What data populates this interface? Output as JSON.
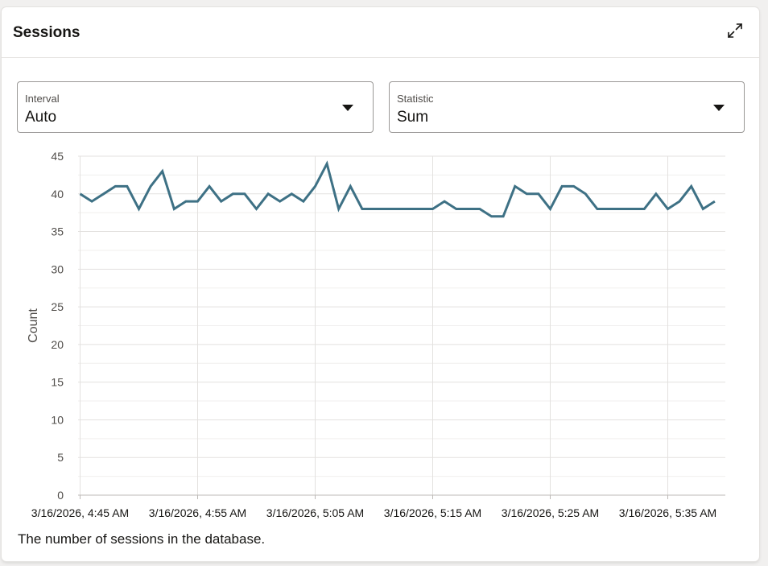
{
  "card": {
    "title": "Sessions",
    "expand_icon": "expand-arrows-icon",
    "footnote": "The number of sessions in the database."
  },
  "filters": {
    "interval": {
      "label": "Interval",
      "value": "Auto"
    },
    "statistic": {
      "label": "Statistic",
      "value": "Sum"
    }
  },
  "colors": {
    "line": "#3e7185",
    "grid": "#e8e7e5",
    "axis": "#bdbab7",
    "tick_text": "#4f4c49"
  },
  "chart_data": {
    "type": "line",
    "title": "",
    "ylabel": "Count",
    "xlabel": "",
    "ylim": [
      0,
      45
    ],
    "yticks": [
      0,
      5,
      10,
      15,
      20,
      25,
      30,
      35,
      40,
      45
    ],
    "xlim_minutes": [
      "3/16/2026, 4:45 AM",
      "3/16/2026, 5:39 AM"
    ],
    "xtick_labels": [
      "3/16/2026, 4:45 AM",
      "3/16/2026, 4:55 AM",
      "3/16/2026, 5:05 AM",
      "3/16/2026, 5:15 AM",
      "3/16/2026, 5:25 AM",
      "3/16/2026, 5:35 AM"
    ],
    "x_interval": "1 minute",
    "x_start": "3/16/2026, 4:45 AM",
    "grid": true,
    "series": [
      {
        "values": [
          40,
          39,
          40,
          41,
          41,
          38,
          41,
          43,
          38,
          39,
          39,
          41,
          39,
          40,
          40,
          38,
          40,
          39,
          40,
          39,
          41,
          44,
          38,
          41,
          38,
          38,
          38,
          38,
          38,
          38,
          38,
          39,
          38,
          38,
          38,
          37,
          37,
          41,
          40,
          40,
          38,
          41,
          41,
          40,
          38,
          38,
          38,
          38,
          38,
          40,
          38,
          39,
          41,
          38,
          39
        ]
      }
    ]
  }
}
